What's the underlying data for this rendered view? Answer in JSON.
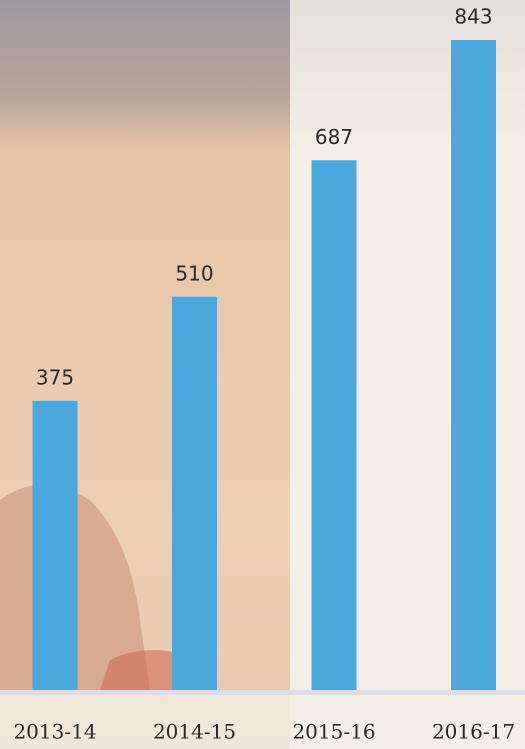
{
  "chart_data": {
    "type": "bar",
    "categories": [
      "2013-14",
      "2014-15",
      "2015-16",
      "2016-17"
    ],
    "values": [
      375,
      510,
      687,
      843
    ],
    "color": "#4aa8dc"
  }
}
